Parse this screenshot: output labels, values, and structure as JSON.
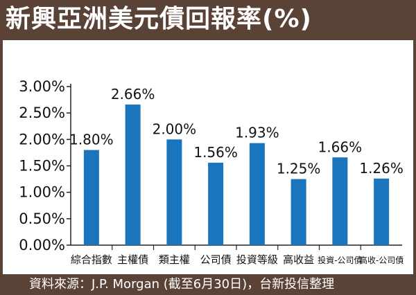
{
  "header": {
    "title": "新興亞洲美元債回報率(%)"
  },
  "footer": {
    "source": "資料來源：J.P. Morgan (截至6月30日)，台新投信整理"
  },
  "colors": {
    "frame": "#5a4237",
    "bar": "#1b75bc",
    "axis": "#222222"
  },
  "chart_data": {
    "type": "bar",
    "title": "新興亞洲美元債回報率(%)",
    "categories": [
      "綜合指數",
      "主權債",
      "類主權",
      "公司債",
      "投資等級",
      "高收益",
      "投資-公司債",
      "高收-公司債"
    ],
    "values": [
      1.8,
      2.66,
      2.0,
      1.56,
      1.93,
      1.25,
      1.66,
      1.26
    ],
    "value_labels": [
      "1.80%",
      "2.66%",
      "2.00%",
      "1.56%",
      "1.93%",
      "1.25%",
      "1.66%",
      "1.26%"
    ],
    "yticks": [
      0,
      0.5,
      1.0,
      1.5,
      2.0,
      2.5,
      3.0
    ],
    "ytick_labels": [
      "0.00%",
      "0.50%",
      "1.00%",
      "1.50%",
      "2.00%",
      "2.50%",
      "3.00%"
    ],
    "ylim": [
      0,
      3.0
    ],
    "grid": false,
    "legend": "none"
  }
}
